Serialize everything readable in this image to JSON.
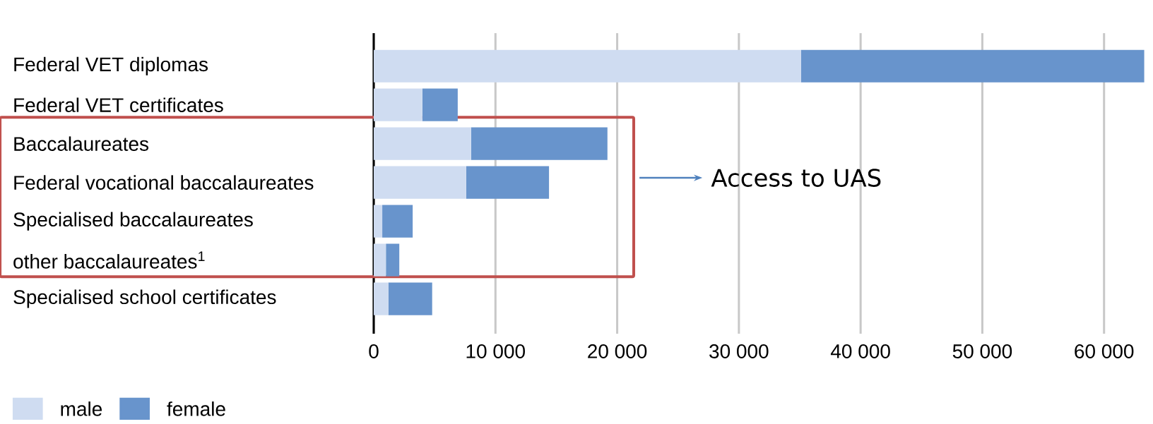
{
  "chart_data": {
    "type": "bar",
    "orientation": "horizontal",
    "stacked": true,
    "categories": [
      "Federal VET diplomas",
      "Federal VET certificates",
      "Baccalaureates",
      "Federal vocational baccalaureates",
      "Specialised baccalaureates",
      "other baccalaureates$^{1}$",
      "Specialised school certificates"
    ],
    "series": [
      {
        "name": "male",
        "color": "#cfdcf1",
        "values": [
          35100,
          4000,
          8000,
          7600,
          700,
          1000,
          1200
        ]
      },
      {
        "name": "female",
        "color": "#6894cc",
        "values": [
          28200,
          2900,
          11200,
          6800,
          2500,
          1100,
          3600
        ]
      }
    ],
    "xlim": [
      0,
      63500
    ],
    "xticks": [
      0,
      {
        "value": 10000,
        "label": "10 000"
      },
      {
        "value": 20000,
        "label": "20 000"
      },
      {
        "value": 30000,
        "label": "30 000"
      },
      {
        "value": 40000,
        "label": "40 000"
      },
      {
        "value": 50000,
        "label": "50 000"
      },
      {
        "value": 60000,
        "label": "60 000"
      }
    ],
    "grid": "x",
    "legend": "bottom left",
    "annotations": [
      "Access to UAS"
    ]
  }
}
